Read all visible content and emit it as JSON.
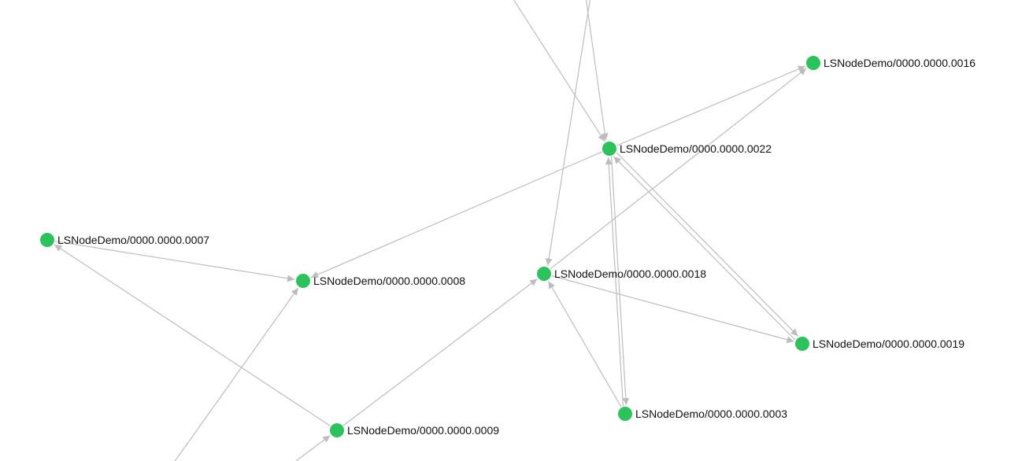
{
  "colors": {
    "node_fill": "#2cc35c",
    "edge_stroke": "#bdbdbd",
    "label_text": "#111111",
    "background": "#ffffff"
  },
  "graph": {
    "nodes": [
      {
        "id": "n16",
        "label": "LSNodeDemo/0000.0000.0016"
      },
      {
        "id": "n22",
        "label": "LSNodeDemo/0000.0000.0022"
      },
      {
        "id": "n07",
        "label": "LSNodeDemo/0000.0000.0007"
      },
      {
        "id": "n08",
        "label": "LSNodeDemo/0000.0000.0008"
      },
      {
        "id": "n18",
        "label": "LSNodeDemo/0000.0000.0018"
      },
      {
        "id": "n19",
        "label": "LSNodeDemo/0000.0000.0019"
      },
      {
        "id": "n03",
        "label": "LSNodeDemo/0000.0000.0003"
      },
      {
        "id": "n09",
        "label": "LSNodeDemo/0000.0000.0009"
      }
    ],
    "edges": [
      {
        "from": "n07",
        "to": "n08"
      },
      {
        "from": "n09",
        "to": "n07"
      },
      {
        "from": "n22",
        "to": "n08"
      },
      {
        "from": "n22",
        "to": "n16"
      },
      {
        "from": "n18",
        "to": "n16"
      },
      {
        "from": "n22",
        "to": "n19"
      },
      {
        "from": "n19",
        "to": "n22"
      },
      {
        "from": "n18",
        "to": "n19"
      },
      {
        "from": "n22",
        "to": "n03"
      },
      {
        "from": "n03",
        "to": "n22"
      },
      {
        "from": "n03",
        "to": "n18"
      },
      {
        "from": "n09",
        "to": "n18"
      },
      {
        "from": "offscreen-a",
        "to": "n22"
      },
      {
        "from": "offscreen-b",
        "to": "n22"
      },
      {
        "from": "offscreen-b",
        "to": "n18"
      },
      {
        "from": "offscreen-c",
        "to": "n08"
      },
      {
        "from": "offscreen-d",
        "to": "n09"
      }
    ]
  }
}
